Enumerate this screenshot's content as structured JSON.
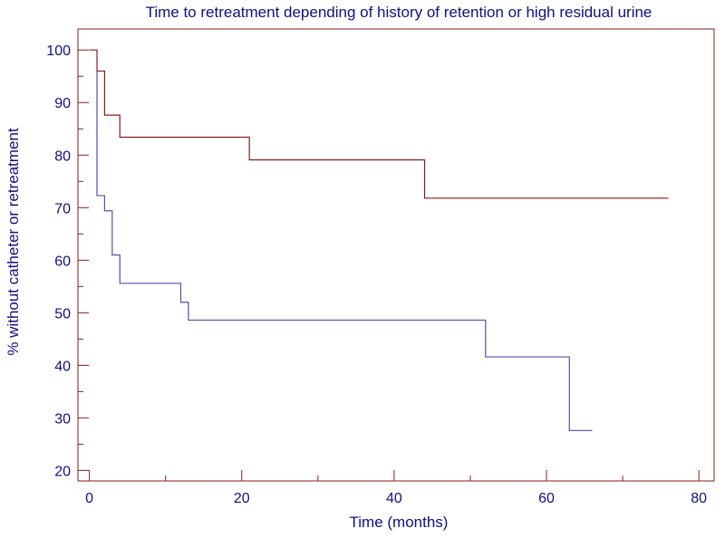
{
  "chart_data": {
    "type": "line",
    "title": "Time to retreatment depending of history of retention or high residual urine",
    "xlabel": "Time (months)",
    "ylabel": "% without catheter or retreatment",
    "xlim": [
      -1.5,
      82
    ],
    "ylim": [
      18,
      104
    ],
    "x_ticks": [
      0,
      20,
      40,
      60,
      80
    ],
    "y_ticks": [
      20,
      30,
      40,
      50,
      60,
      70,
      80,
      90,
      100
    ],
    "grid": false,
    "legend": "none",
    "series": [
      {
        "color": "#8b1a1a",
        "step": true,
        "x": [
          0,
          1,
          2,
          4,
          21,
          44,
          76
        ],
        "y": [
          100,
          96,
          87.6,
          83.4,
          79.1,
          71.8,
          71.8
        ]
      },
      {
        "color": "#5050b0",
        "step": true,
        "x": [
          1,
          1,
          2,
          3,
          4,
          12,
          13,
          52,
          63,
          66
        ],
        "y": [
          96,
          72.3,
          69.4,
          61,
          55.6,
          52,
          48.6,
          41.6,
          27.6,
          27.6
        ]
      }
    ],
    "colors": {
      "axis": "#8b1a1a",
      "text": "#101080"
    }
  }
}
